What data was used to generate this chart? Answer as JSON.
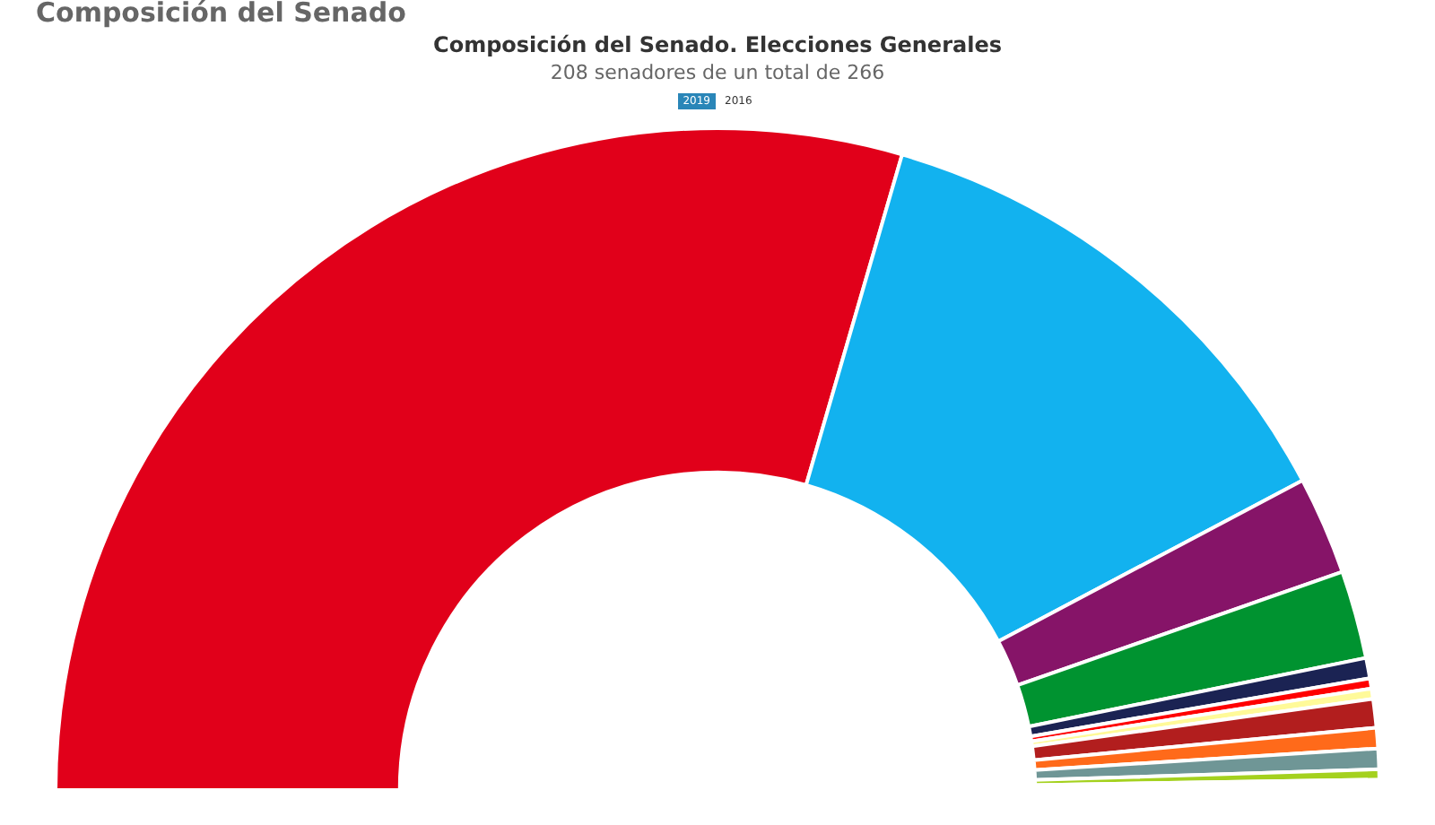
{
  "chart_data": {
    "type": "donut",
    "title": "Composición del Senado. Elecciones Generales",
    "subtitle": "208 senadores de un total de 266",
    "annotations": [
      "Composición del Senado",
      "2019",
      "2016"
    ],
    "categories": [
      null,
      null,
      null,
      null,
      null,
      null,
      null,
      null,
      null,
      null,
      null,
      null
    ],
    "values": [
      59.0,
      25.5,
      4.8,
      4.3,
      1.0,
      0.5,
      0.5,
      1.4,
      1.0,
      1.0,
      0.5,
      0.5
    ],
    "colors": [
      "#e1001a",
      "#12b2ef",
      "#861468",
      "#009330",
      "#1b2353",
      "#ff0000",
      "#fffa99",
      "#b21e1e",
      "#ff6a1a",
      "#6f9696",
      "#a4d11e",
      "#ffffff"
    ],
    "legend": false
  }
}
